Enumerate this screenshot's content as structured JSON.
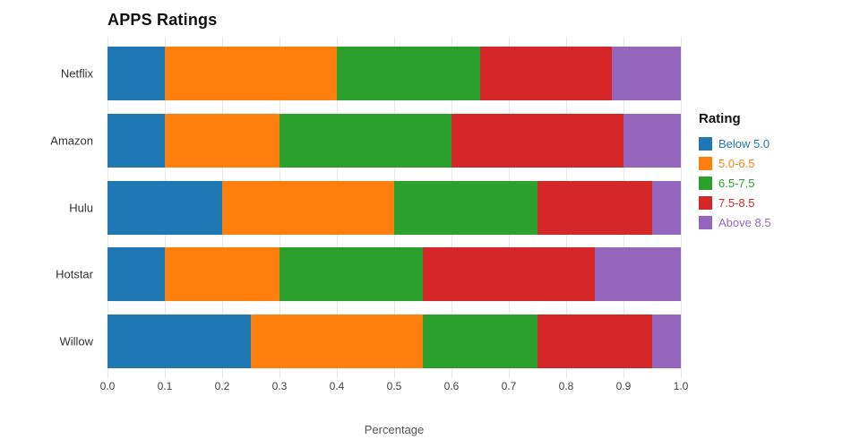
{
  "title": "APPS Ratings",
  "xlabel": "Percentage",
  "legend": {
    "title": "Rating",
    "items": [
      {
        "label": "Below 5.0",
        "color": "#1f77b4"
      },
      {
        "label": "5.0-6.5",
        "color": "#ff7f0e"
      },
      {
        "label": "6.5-7.5",
        "color": "#2ca02c"
      },
      {
        "label": "7.5-8.5",
        "color": "#d62728"
      },
      {
        "label": "Above 8.5",
        "color": "#9467bd"
      }
    ]
  },
  "chart_data": {
    "type": "bar",
    "orientation": "horizontal",
    "stacked": true,
    "title": "APPS Ratings",
    "xlabel": "Percentage",
    "ylabel": "",
    "xlim": [
      0,
      1
    ],
    "grid": true,
    "legend_position": "right",
    "categories": [
      "Netflix",
      "Amazon",
      "Hulu",
      "Hotstar",
      "Willow"
    ],
    "x_ticks": [
      "0.0",
      "0.1",
      "0.2",
      "0.3",
      "0.4",
      "0.5",
      "0.6",
      "0.7",
      "0.8",
      "0.9",
      "1.0"
    ],
    "series": [
      {
        "name": "Below 5.0",
        "color": "#1f77b4",
        "values": [
          0.1,
          0.1,
          0.2,
          0.1,
          0.25
        ]
      },
      {
        "name": "5.0-6.5",
        "color": "#ff7f0e",
        "values": [
          0.3,
          0.2,
          0.3,
          0.2,
          0.3
        ]
      },
      {
        "name": "6.5-7.5",
        "color": "#2ca02c",
        "values": [
          0.25,
          0.3,
          0.25,
          0.25,
          0.2
        ]
      },
      {
        "name": "7.5-8.5",
        "color": "#d62728",
        "values": [
          0.23,
          0.3,
          0.2,
          0.3,
          0.2
        ]
      },
      {
        "name": "Above 8.5",
        "color": "#9467bd",
        "values": [
          0.12,
          0.1,
          0.05,
          0.15,
          0.05
        ]
      }
    ]
  }
}
